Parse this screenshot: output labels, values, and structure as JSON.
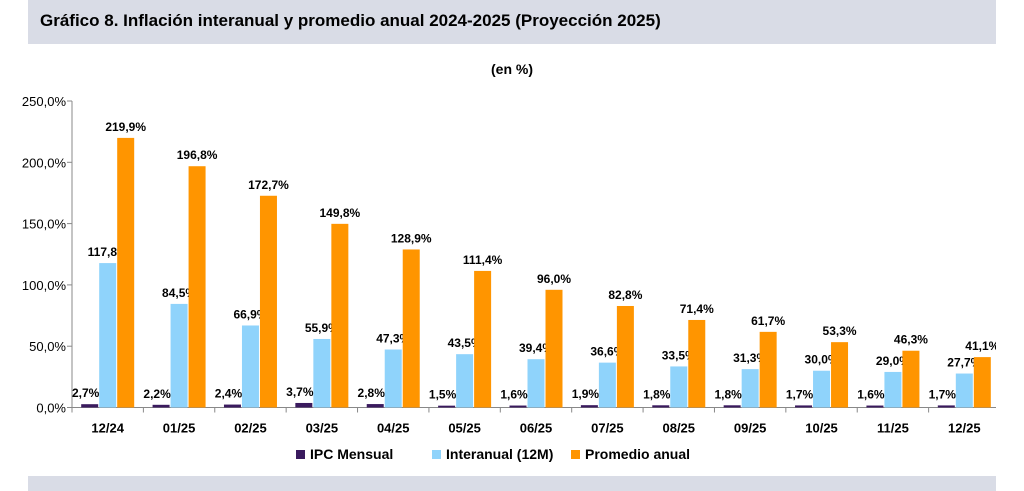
{
  "header": {
    "title": "Gráfico 8. Inflación interanual y promedio anual 2024-2025 (Proyección 2025)"
  },
  "chart_data": {
    "type": "bar",
    "title": "",
    "subtitle": "(en %)",
    "categories": [
      "12/24",
      "01/25",
      "02/25",
      "03/25",
      "04/25",
      "05/25",
      "06/25",
      "07/25",
      "08/25",
      "09/25",
      "10/25",
      "11/25",
      "12/25"
    ],
    "series": [
      {
        "name": "IPC Mensual",
        "color": "#3a1a5e",
        "values": [
          2.7,
          2.2,
          2.4,
          3.7,
          2.8,
          1.5,
          1.6,
          1.9,
          1.8,
          1.8,
          1.7,
          1.6,
          1.7
        ],
        "labels": [
          "2,7%",
          "2,2%",
          "2,4%",
          "3,7%",
          "2,8%",
          "1,5%",
          "1,6%",
          "1,9%",
          "1,8%",
          "1,8%",
          "1,7%",
          "1,6%",
          "1,7%"
        ]
      },
      {
        "name": "Interanual (12M)",
        "color": "#8fd3fb",
        "values": [
          117.8,
          84.5,
          66.9,
          55.9,
          47.3,
          43.5,
          39.4,
          36.6,
          33.5,
          31.3,
          30.0,
          29.0,
          27.7
        ],
        "labels": [
          "117,8%",
          "84,5%",
          "66,9%",
          "55,9%",
          "47,3%",
          "43,5%",
          "39,4%",
          "36,6%",
          "33,5%",
          "31,3%",
          "30,0%",
          "29,0%",
          "27,7%"
        ]
      },
      {
        "name": "Promedio anual",
        "color": "#ff9500",
        "values": [
          219.9,
          196.8,
          172.7,
          149.8,
          128.9,
          111.4,
          96.0,
          82.8,
          71.4,
          61.7,
          53.3,
          46.3,
          41.1
        ],
        "labels": [
          "219,9%",
          "196,8%",
          "172,7%",
          "149,8%",
          "128,9%",
          "111,4%",
          "96,0%",
          "82,8%",
          "71,4%",
          "61,7%",
          "53,3%",
          "46,3%",
          "41,1%"
        ]
      }
    ],
    "ylim": [
      0,
      250
    ],
    "yticks": [
      {
        "value": 0,
        "label": "0,0%"
      },
      {
        "value": 50,
        "label": "50,0%"
      },
      {
        "value": 100,
        "label": "100,0%"
      },
      {
        "value": 150,
        "label": "150,0%"
      },
      {
        "value": 200,
        "label": "200,0%"
      },
      {
        "value": 250,
        "label": "250,0%"
      }
    ],
    "grid": false,
    "legend_position": "bottom"
  }
}
